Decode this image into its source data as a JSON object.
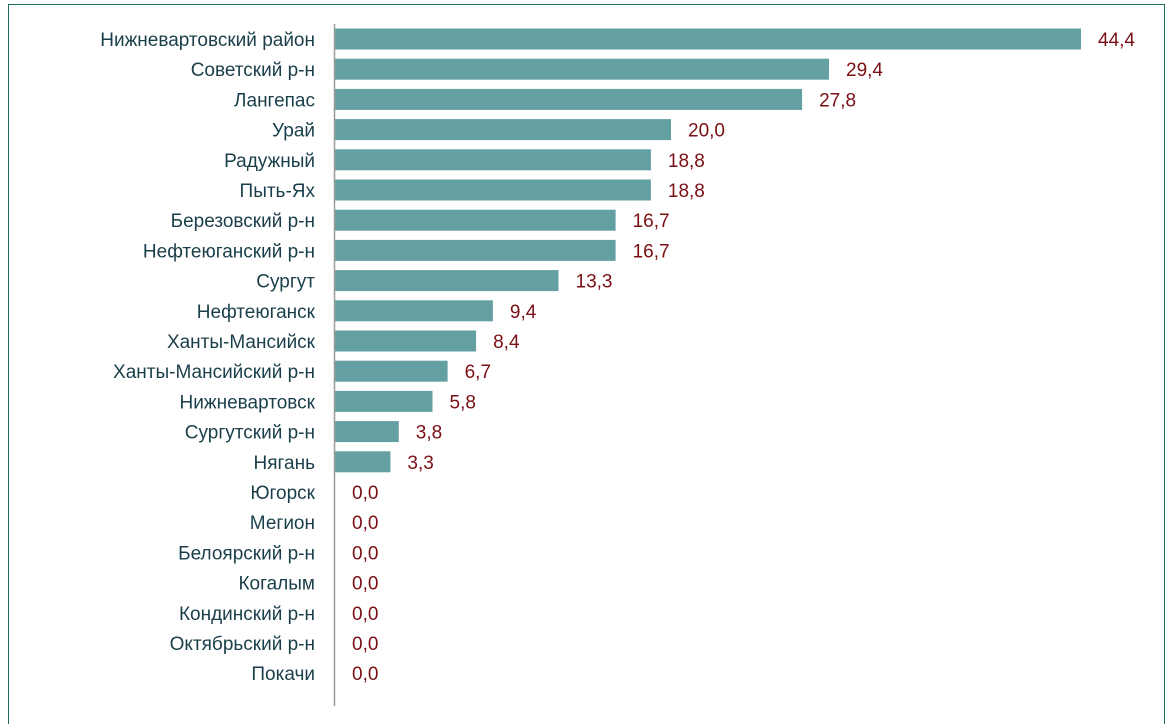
{
  "colors": {
    "bar": "#64a0a2",
    "category_text": "#1a3f4a",
    "value_text": "#7a0f14",
    "axis": "#9a9a9a",
    "frame": "#1f6b61"
  },
  "chart_data": {
    "type": "bar",
    "orientation": "horizontal",
    "title": "",
    "xlabel": "",
    "ylabel": "",
    "xlim": [
      0,
      44.4
    ],
    "grid": false,
    "legend": "none",
    "categories": [
      "Нижневартовский район",
      "Советский р-н",
      "Лангепас",
      "Урай",
      "Радужный",
      "Пыть-Ях",
      "Березовский р-н",
      "Нефтеюганский р-н",
      "Сургут",
      "Нефтеюганск",
      "Ханты-Мансийск",
      "Ханты-Мансийский р-н",
      "Нижневартовск",
      "Сургутский р-н",
      "Нягань",
      "Югорск",
      "Мегион",
      "Белоярский р-н",
      "Когалым",
      "Кондинский р-н",
      "Октябрьский р-н",
      "Покачи"
    ],
    "values": [
      44.4,
      29.4,
      27.8,
      20.0,
      18.8,
      18.8,
      16.7,
      16.7,
      13.3,
      9.4,
      8.4,
      6.7,
      5.8,
      3.8,
      3.3,
      0.0,
      0.0,
      0.0,
      0.0,
      0.0,
      0.0,
      0.0
    ],
    "value_labels": [
      "44,4",
      "29,4",
      "27,8",
      "20,0",
      "18,8",
      "18,8",
      "16,7",
      "16,7",
      "13,3",
      "9,4",
      "8,4",
      "6,7",
      "5,8",
      "3,8",
      "3,3",
      "0,0",
      "0,0",
      "0,0",
      "0,0",
      "0,0",
      "0,0",
      "0,0"
    ]
  }
}
